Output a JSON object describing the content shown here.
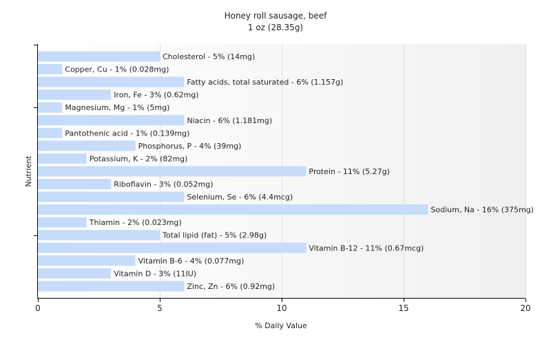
{
  "chart_data": {
    "type": "bar",
    "orientation": "horizontal",
    "title": "Honey roll sausage, beef",
    "subtitle": "1 oz (28.35g)",
    "xlabel": "% Daily Value",
    "ylabel": "Nutrient",
    "xlim": [
      0,
      20
    ],
    "xticks": [
      0,
      5,
      10,
      15,
      20
    ],
    "grid": true,
    "bar_color": "#c6dcfa",
    "categories": [
      "Cholesterol",
      "Copper, Cu",
      "Fatty acids, total saturated",
      "Iron, Fe",
      "Magnesium, Mg",
      "Niacin",
      "Pantothenic acid",
      "Phosphorus, P",
      "Potassium, K",
      "Protein",
      "Riboflavin",
      "Selenium, Se",
      "Sodium, Na",
      "Thiamin",
      "Total lipid (fat)",
      "Vitamin B-12",
      "Vitamin B-6",
      "Vitamin D",
      "Zinc, Zn"
    ],
    "values": [
      5,
      1,
      6,
      3,
      1,
      6,
      1,
      4,
      2,
      11,
      3,
      6,
      16,
      2,
      5,
      11,
      4,
      3,
      6
    ],
    "labels": [
      "Cholesterol - 5% (14mg)",
      "Copper, Cu - 1% (0.028mg)",
      "Fatty acids, total saturated - 6% (1.157g)",
      "Iron, Fe - 3% (0.62mg)",
      "Magnesium, Mg - 1% (5mg)",
      "Niacin - 6% (1.181mg)",
      "Pantothenic acid - 1% (0.139mg)",
      "Phosphorus, P - 4% (39mg)",
      "Potassium, K - 2% (82mg)",
      "Protein - 11% (5.27g)",
      "Riboflavin - 3% (0.052mg)",
      "Selenium, Se - 6% (4.4mcg)",
      "Sodium, Na - 16% (375mg)",
      "Thiamin - 2% (0.023mg)",
      "Total lipid (fat) - 5% (2.98g)",
      "Vitamin B-12 - 11% (0.67mcg)",
      "Vitamin B-6 - 4% (0.077mg)",
      "Vitamin D - 3% (11IU)",
      "Zinc, Zn - 6% (0.92mg)"
    ]
  }
}
